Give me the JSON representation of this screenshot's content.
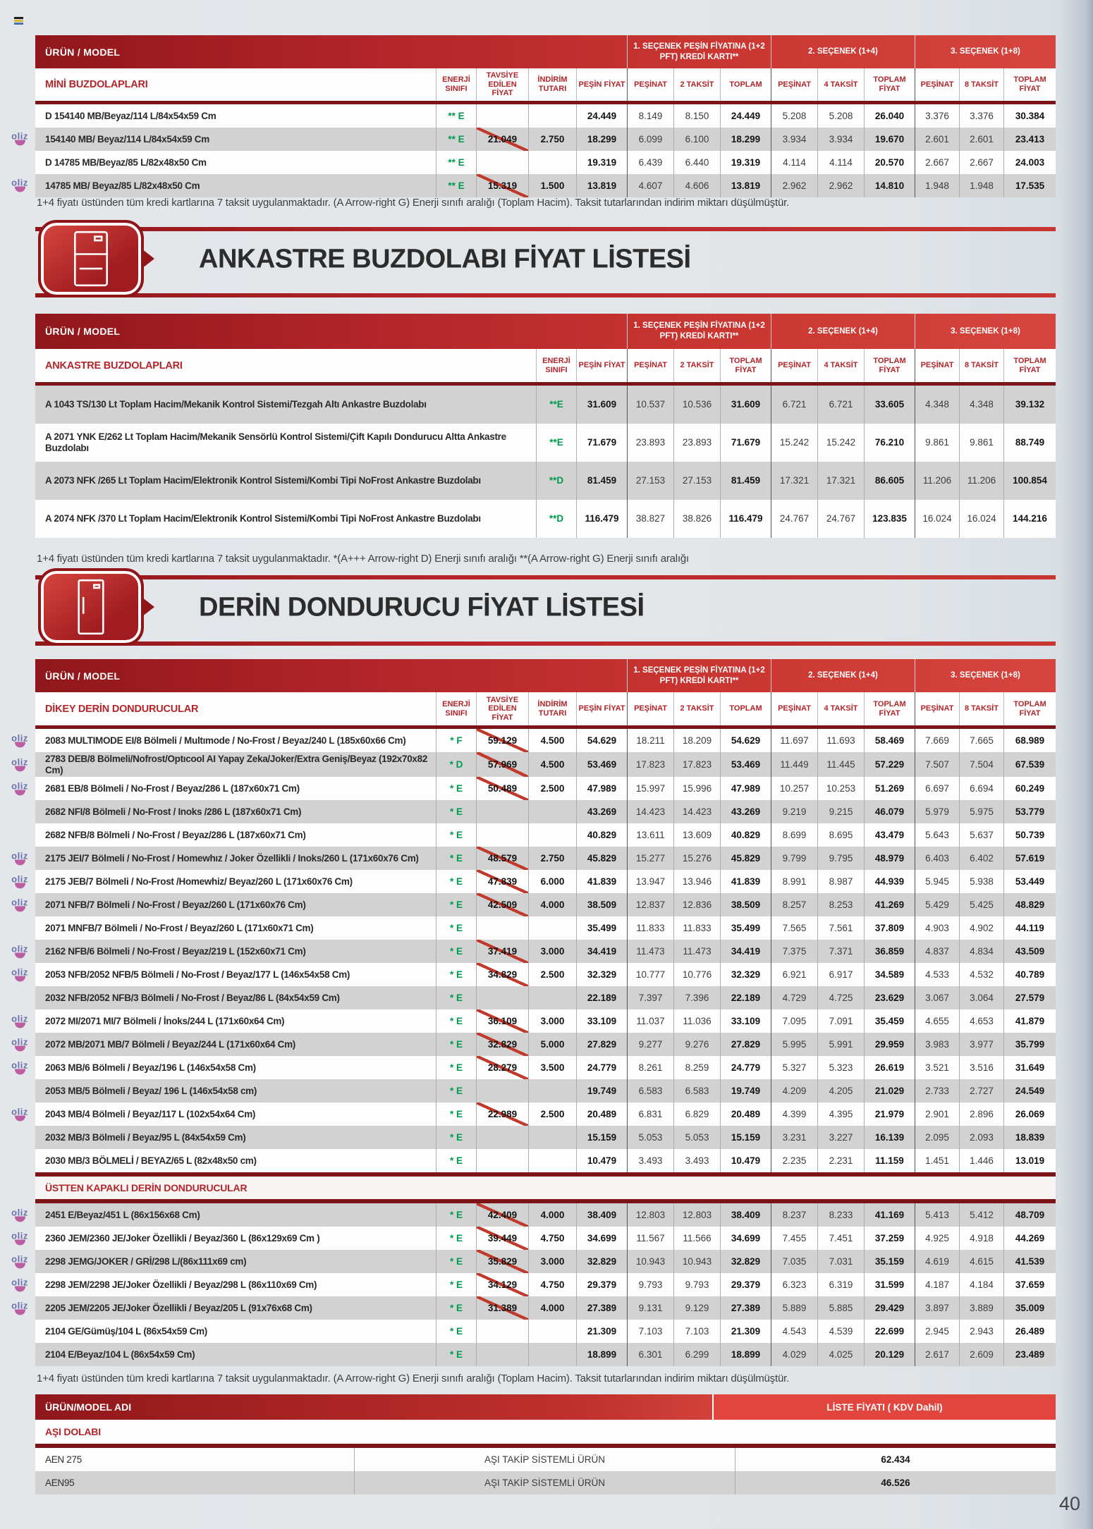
{
  "page": {
    "number": "40"
  },
  "sections": {
    "ankastre": {
      "title": "ANKASTRE BUZDOLABI FİYAT LİSTESİ"
    },
    "derin": {
      "title": "DERİN DONDURUCU FİYAT LİSTESİ"
    }
  },
  "footnotes": {
    "mini": "1+4 fiyatı üstünden tüm kredi kartlarına 7 taksit uygulanmaktadır. (A Arrow-right G) Enerji sınıfı aralığı (Toplam Hacim). Taksit tutarlarından indirim miktarı düşülmüştür.",
    "ankastre": "1+4 fiyatı üstünden tüm kredi kartlarına 7 taksit uygulanmaktadır.   *(A+++ Arrow-right D) Enerji sınıfı aralığı   **(A Arrow-right G) Enerji sınıfı aralığı",
    "derin": "1+4 fiyatı üstünden tüm kredi kartlarına 7 taksit uygulanmaktadır. (A Arrow-right G) Enerji sınıfı aralığı (Toplam Hacim). Taksit tutarlarından indirim miktarı düşülmüştür."
  },
  "tables": {
    "mini": {
      "urun_label": "ÜRÜN / MODEL",
      "groups": [
        "1. SEÇENEK PEŞİN FİYATINA (1+2 PFT) KREDİ KARTI**",
        "2. SEÇENEK (1+4)",
        "3. SEÇENEK (1+8)"
      ],
      "section_label": "MİNİ BUZDOLAPLARI",
      "col_headers": [
        "ENERJİ SINIFI",
        "TAVSİYE EDİLEN FİYAT",
        "İNDİRİM TUTARI",
        "PEŞİN FİYAT",
        "PEŞİNAT",
        "2 TAKSİT",
        "TOPLAM",
        "PEŞİNAT",
        "4 TAKSİT",
        "TOPLAM FİYAT",
        "PEŞİNAT",
        "8 TAKSİT",
        "TOPLAM FİYAT"
      ],
      "rows": [
        {
          "model": "D 154140 MB/Beyaz/114 L/84x54x59 Cm",
          "energy": "** E",
          "logo": false,
          "vals": [
            "",
            "",
            "24.449",
            "8.149",
            "8.150",
            "24.449",
            "5.208",
            "5.208",
            "26.040",
            "3.376",
            "3.376",
            "30.384"
          ]
        },
        {
          "model": "154140 MB/ Beyaz/114 L/84x54x59 Cm",
          "energy": "** E",
          "logo": true,
          "vals": [
            "21.049",
            "2.750",
            "18.299",
            "6.099",
            "6.100",
            "18.299",
            "3.934",
            "3.934",
            "19.670",
            "2.601",
            "2.601",
            "23.413"
          ]
        },
        {
          "model": "D 14785 MB/Beyaz/85 L/82x48x50 Cm",
          "energy": "** E",
          "logo": false,
          "vals": [
            "",
            "",
            "19.319",
            "6.439",
            "6.440",
            "19.319",
            "4.114",
            "4.114",
            "20.570",
            "2.667",
            "2.667",
            "24.003"
          ]
        },
        {
          "model": "14785 MB/ Beyaz/85 L/82x48x50 Cm",
          "energy": "** E",
          "logo": true,
          "vals": [
            "15.319",
            "1.500",
            "13.819",
            "4.607",
            "4.606",
            "13.819",
            "2.962",
            "2.962",
            "14.810",
            "1.948",
            "1.948",
            "17.535"
          ]
        }
      ]
    },
    "ankastre": {
      "urun_label": "ÜRÜN / MODEL",
      "groups": [
        "1. SEÇENEK PEŞİN FİYATINA (1+2 PFT) KREDİ KARTI**",
        "2. SEÇENEK (1+4)",
        "3. SEÇENEK (1+8)"
      ],
      "section_label": "ANKASTRE BUZDOLAPLARI",
      "col_headers": [
        "ENERJİ SINIFI",
        "PEŞİN FİYAT",
        "PEŞİNAT",
        "2 TAKSİT",
        "TOPLAM FİYAT",
        "PEŞİNAT",
        "4 TAKSİT",
        "TOPLAM FİYAT",
        "PEŞİNAT",
        "8 TAKSİT",
        "TOPLAM FİYAT"
      ],
      "rows": [
        {
          "model": "A 1043 TS/130 Lt Toplam Hacim/Mekanik Kontrol Sistemi/Tezgah Altı Ankastre Buzdolabı",
          "energy": "**E",
          "vals": [
            "31.609",
            "10.537",
            "10.536",
            "31.609",
            "6.721",
            "6.721",
            "33.605",
            "4.348",
            "4.348",
            "39.132"
          ]
        },
        {
          "model": "A 2071 YNK E/262 Lt Toplam Hacim/Mekanik Sensörlü Kontrol Sistemi/Çift Kapılı Dondurucu Altta Ankastre Buzdolabı",
          "energy": "**E",
          "vals": [
            "71.679",
            "23.893",
            "23.893",
            "71.679",
            "15.242",
            "15.242",
            "76.210",
            "9.861",
            "9.861",
            "88.749"
          ]
        },
        {
          "model": "A 2073 NFK /265 Lt Toplam Hacim/Elektronik Kontrol Sistemi/Kombi Tipi NoFrost Ankastre Buzdolabı",
          "energy": "**D",
          "vals": [
            "81.459",
            "27.153",
            "27.153",
            "81.459",
            "17.321",
            "17.321",
            "86.605",
            "11.206",
            "11.206",
            "100.854"
          ]
        },
        {
          "model": "A 2074 NFK /370 Lt Toplam Hacim/Elektronik Kontrol Sistemi/Kombi Tipi NoFrost Ankastre Buzdolabı",
          "energy": "**D",
          "vals": [
            "116.479",
            "38.827",
            "38.826",
            "116.479",
            "24.767",
            "24.767",
            "123.835",
            "16.024",
            "16.024",
            "144.216"
          ]
        }
      ]
    },
    "derin": {
      "urun_label": "ÜRÜN / MODEL",
      "groups": [
        "1. SEÇENEK PEŞİN FİYATINA (1+2 PFT) KREDİ KARTI**",
        "2. SEÇENEK (1+4)",
        "3. SEÇENEK (1+8)"
      ],
      "section_label": "DİKEY DERİN DONDURUCULAR",
      "col_headers": [
        "ENERJİ SINIFI",
        "TAVSİYE EDİLEN FİYAT",
        "İNDİRİM TUTARI",
        "PEŞİN FİYAT",
        "PEŞİNAT",
        "2 TAKSİT",
        "TOPLAM",
        "PEŞİNAT",
        "4 TAKSİT",
        "TOPLAM FİYAT",
        "PEŞİNAT",
        "8 TAKSİT",
        "TOPLAM FİYAT"
      ],
      "rows": [
        {
          "model": "2083 MULTIMODE EI/8 Bölmeli / Multımode / No-Frost / Beyaz/240 L (185x60x66 Cm)",
          "energy": "* F",
          "logo": true,
          "vals": [
            "59.129",
            "4.500",
            "54.629",
            "18.211",
            "18.209",
            "54.629",
            "11.697",
            "11.693",
            "58.469",
            "7.669",
            "7.665",
            "68.989"
          ]
        },
        {
          "model": "2783 DEB/8 Bölmeli/Nofrost/Optıcool AI Yapay Zeka/Joker/Extra Geniş/Beyaz (192x70x82 Cm)",
          "energy": "* D",
          "logo": true,
          "vals": [
            "57.969",
            "4.500",
            "53.469",
            "17.823",
            "17.823",
            "53.469",
            "11.449",
            "11.445",
            "57.229",
            "7.507",
            "7.504",
            "67.539"
          ]
        },
        {
          "model": "2681 EB/8 Bölmeli / No-Frost / Beyaz/286 L (187x60x71 Cm)",
          "energy": "* E",
          "logo": true,
          "vals": [
            "50.489",
            "2.500",
            "47.989",
            "15.997",
            "15.996",
            "47.989",
            "10.257",
            "10.253",
            "51.269",
            "6.697",
            "6.694",
            "60.249"
          ]
        },
        {
          "model": "2682 NFI/8 Bölmeli / No-Frost / Inoks /286 L (187x60x71 Cm)",
          "energy": "* E",
          "logo": false,
          "vals": [
            "",
            "",
            "43.269",
            "14.423",
            "14.423",
            "43.269",
            "9.219",
            "9.215",
            "46.079",
            "5.979",
            "5.975",
            "53.779"
          ]
        },
        {
          "model": "2682 NFB/8 Bölmeli / No-Frost / Beyaz/286 L (187x60x71 Cm)",
          "energy": "* E",
          "logo": false,
          "vals": [
            "",
            "",
            "40.829",
            "13.611",
            "13.609",
            "40.829",
            "8.699",
            "8.695",
            "43.479",
            "5.643",
            "5.637",
            "50.739"
          ]
        },
        {
          "model": "2175 JEI/7 Bölmeli / No-Frost / Homewhız / Joker Özellikli / Inoks/260 L (171x60x76 Cm)",
          "energy": "* E",
          "logo": true,
          "vals": [
            "48.579",
            "2.750",
            "45.829",
            "15.277",
            "15.276",
            "45.829",
            "9.799",
            "9.795",
            "48.979",
            "6.403",
            "6.402",
            "57.619"
          ]
        },
        {
          "model": "2175 JEB/7 Bölmeli / No-Frost /Homewhiz/ Beyaz/260 L (171x60x76 Cm)",
          "energy": "* E",
          "logo": true,
          "vals": [
            "47.839",
            "6.000",
            "41.839",
            "13.947",
            "13.946",
            "41.839",
            "8.991",
            "8.987",
            "44.939",
            "5.945",
            "5.938",
            "53.449"
          ]
        },
        {
          "model": "2071 NFB/7 Bölmeli / No-Frost / Beyaz/260 L (171x60x76 Cm)",
          "energy": "* E",
          "logo": true,
          "vals": [
            "42.509",
            "4.000",
            "38.509",
            "12.837",
            "12.836",
            "38.509",
            "8.257",
            "8.253",
            "41.269",
            "5.429",
            "5.425",
            "48.829"
          ]
        },
        {
          "model": "2071 MNFB/7 Bölmeli / No-Frost / Beyaz/260 L (171x60x71 Cm)",
          "energy": "* E",
          "logo": false,
          "vals": [
            "",
            "",
            "35.499",
            "11.833",
            "11.833",
            "35.499",
            "7.565",
            "7.561",
            "37.809",
            "4.903",
            "4.902",
            "44.119"
          ]
        },
        {
          "model": "2162 NFB/6 Bölmeli / No-Frost / Beyaz/219 L (152x60x71 Cm)",
          "energy": "* E",
          "logo": true,
          "vals": [
            "37.419",
            "3.000",
            "34.419",
            "11.473",
            "11.473",
            "34.419",
            "7.375",
            "7.371",
            "36.859",
            "4.837",
            "4.834",
            "43.509"
          ]
        },
        {
          "model": "2053 NFB/2052 NFB/5 Bölmeli / No-Frost / Beyaz/177 L (146x54x58 Cm)",
          "energy": "* E",
          "logo": true,
          "vals": [
            "34.829",
            "2.500",
            "32.329",
            "10.777",
            "10.776",
            "32.329",
            "6.921",
            "6.917",
            "34.589",
            "4.533",
            "4.532",
            "40.789"
          ]
        },
        {
          "model": "2032 NFB/2052 NFB/3 Bölmeli / No-Frost / Beyaz/86 L (84x54x59 Cm)",
          "energy": "* E",
          "logo": false,
          "vals": [
            "",
            "",
            "22.189",
            "7.397",
            "7.396",
            "22.189",
            "4.729",
            "4.725",
            "23.629",
            "3.067",
            "3.064",
            "27.579"
          ]
        },
        {
          "model": "2072 MI/2071 MI/7 Bölmeli / İnoks/244 L (171x60x64 Cm)",
          "energy": "* E",
          "logo": true,
          "vals": [
            "36.109",
            "3.000",
            "33.109",
            "11.037",
            "11.036",
            "33.109",
            "7.095",
            "7.091",
            "35.459",
            "4.655",
            "4.653",
            "41.879"
          ]
        },
        {
          "model": "2072 MB/2071 MB/7 Bölmeli / Beyaz/244 L (171x60x64 Cm)",
          "energy": "* E",
          "logo": true,
          "vals": [
            "32.829",
            "5.000",
            "27.829",
            "9.277",
            "9.276",
            "27.829",
            "5.995",
            "5.991",
            "29.959",
            "3.983",
            "3.977",
            "35.799"
          ]
        },
        {
          "model": "2063 MB/6 Bölmeli / Beyaz/196 L (146x54x58 Cm)",
          "energy": "* E",
          "logo": true,
          "vals": [
            "28.279",
            "3.500",
            "24.779",
            "8.261",
            "8.259",
            "24.779",
            "5.327",
            "5.323",
            "26.619",
            "3.521",
            "3.516",
            "31.649"
          ]
        },
        {
          "model": "2053 MB/5 Bölmeli / Beyaz/ 196 L (146x54x58 cm)",
          "energy": "* E",
          "logo": false,
          "vals": [
            "",
            "",
            "19.749",
            "6.583",
            "6.583",
            "19.749",
            "4.209",
            "4.205",
            "21.029",
            "2.733",
            "2.727",
            "24.549"
          ]
        },
        {
          "model": "2043 MB/4 Bölmeli / Beyaz/117 L (102x54x64 Cm)",
          "energy": "* E",
          "logo": true,
          "vals": [
            "22.989",
            "2.500",
            "20.489",
            "6.831",
            "6.829",
            "20.489",
            "4.399",
            "4.395",
            "21.979",
            "2.901",
            "2.896",
            "26.069"
          ]
        },
        {
          "model": "2032 MB/3 Bölmeli / Beyaz/95 L (84x54x59 Cm)",
          "energy": "* E",
          "logo": false,
          "vals": [
            "",
            "",
            "15.159",
            "5.053",
            "5.053",
            "15.159",
            "3.231",
            "3.227",
            "16.139",
            "2.095",
            "2.093",
            "18.839"
          ]
        },
        {
          "model": "2030 MB/3 BÖLMELİ / BEYAZ/65 L (82x48x50 cm)",
          "energy": "* E",
          "logo": false,
          "vals": [
            "",
            "",
            "10.479",
            "3.493",
            "3.493",
            "10.479",
            "2.235",
            "2.231",
            "11.159",
            "1.451",
            "1.446",
            "13.019"
          ]
        },
        {
          "subsection": "ÜSTTEN KAPAKLI DERİN DONDURUCULAR"
        },
        {
          "model": "2451 E/Beyaz/451 L (86x156x68 Cm)",
          "energy": "* E",
          "logo": true,
          "vals": [
            "42.409",
            "4.000",
            "38.409",
            "12.803",
            "12.803",
            "38.409",
            "8.237",
            "8.233",
            "41.169",
            "5.413",
            "5.412",
            "48.709"
          ]
        },
        {
          "model": "2360 JEM/2360 JE/Joker Özellikli / Beyaz/360 L (86x129x69 Cm )",
          "energy": "* E",
          "logo": true,
          "vals": [
            "39.449",
            "4.750",
            "34.699",
            "11.567",
            "11.566",
            "34.699",
            "7.455",
            "7.451",
            "37.259",
            "4.925",
            "4.918",
            "44.269"
          ]
        },
        {
          "model": "2298 JEMG/JOKER / GRİ/298 L/(86x111x69 cm)",
          "energy": "* E",
          "logo": true,
          "vals": [
            "35.829",
            "3.000",
            "32.829",
            "10.943",
            "10.943",
            "32.829",
            "7.035",
            "7.031",
            "35.159",
            "4.619",
            "4.615",
            "41.539"
          ]
        },
        {
          "model": "2298 JEM/2298 JE/Joker Özellikli / Beyaz/298 L (86x110x69 Cm)",
          "energy": "* E",
          "logo": true,
          "vals": [
            "34.129",
            "4.750",
            "29.379",
            "9.793",
            "9.793",
            "29.379",
            "6.323",
            "6.319",
            "31.599",
            "4.187",
            "4.184",
            "37.659"
          ]
        },
        {
          "model": "2205 JEM/2205 JE/Joker Özellikli / Beyaz/205 L (91x76x68 Cm)",
          "energy": "* E",
          "logo": true,
          "vals": [
            "31.389",
            "4.000",
            "27.389",
            "9.131",
            "9.129",
            "27.389",
            "5.889",
            "5.885",
            "29.429",
            "3.897",
            "3.889",
            "35.009"
          ]
        },
        {
          "model": "2104 GE/Gümüş/104 L (86x54x59 Cm)",
          "energy": "* E",
          "logo": false,
          "vals": [
            "",
            "",
            "21.309",
            "7.103",
            "7.103",
            "21.309",
            "4.543",
            "4.539",
            "22.699",
            "2.945",
            "2.943",
            "26.489"
          ]
        },
        {
          "model": "2104 E/Beyaz/104 L (86x54x59 Cm)",
          "energy": "* E",
          "logo": false,
          "vals": [
            "",
            "",
            "18.899",
            "6.301",
            "6.299",
            "18.899",
            "4.029",
            "4.025",
            "20.129",
            "2.617",
            "2.609",
            "23.489"
          ]
        }
      ]
    },
    "asi": {
      "header_left": "ÜRÜN/MODEL ADI",
      "header_right": "LİSTE FİYATI ( KDV Dahil)",
      "section_label": "AŞI DOLABI",
      "rows": [
        {
          "model": "AEN 275",
          "vals": [
            "AŞI TAKİP SİSTEMLİ ÜRÜN",
            "62.434"
          ]
        },
        {
          "model": "AEN95",
          "vals": [
            "AŞI TAKİP SİSTEMLİ ÜRÜN",
            "46.526"
          ]
        }
      ]
    }
  }
}
